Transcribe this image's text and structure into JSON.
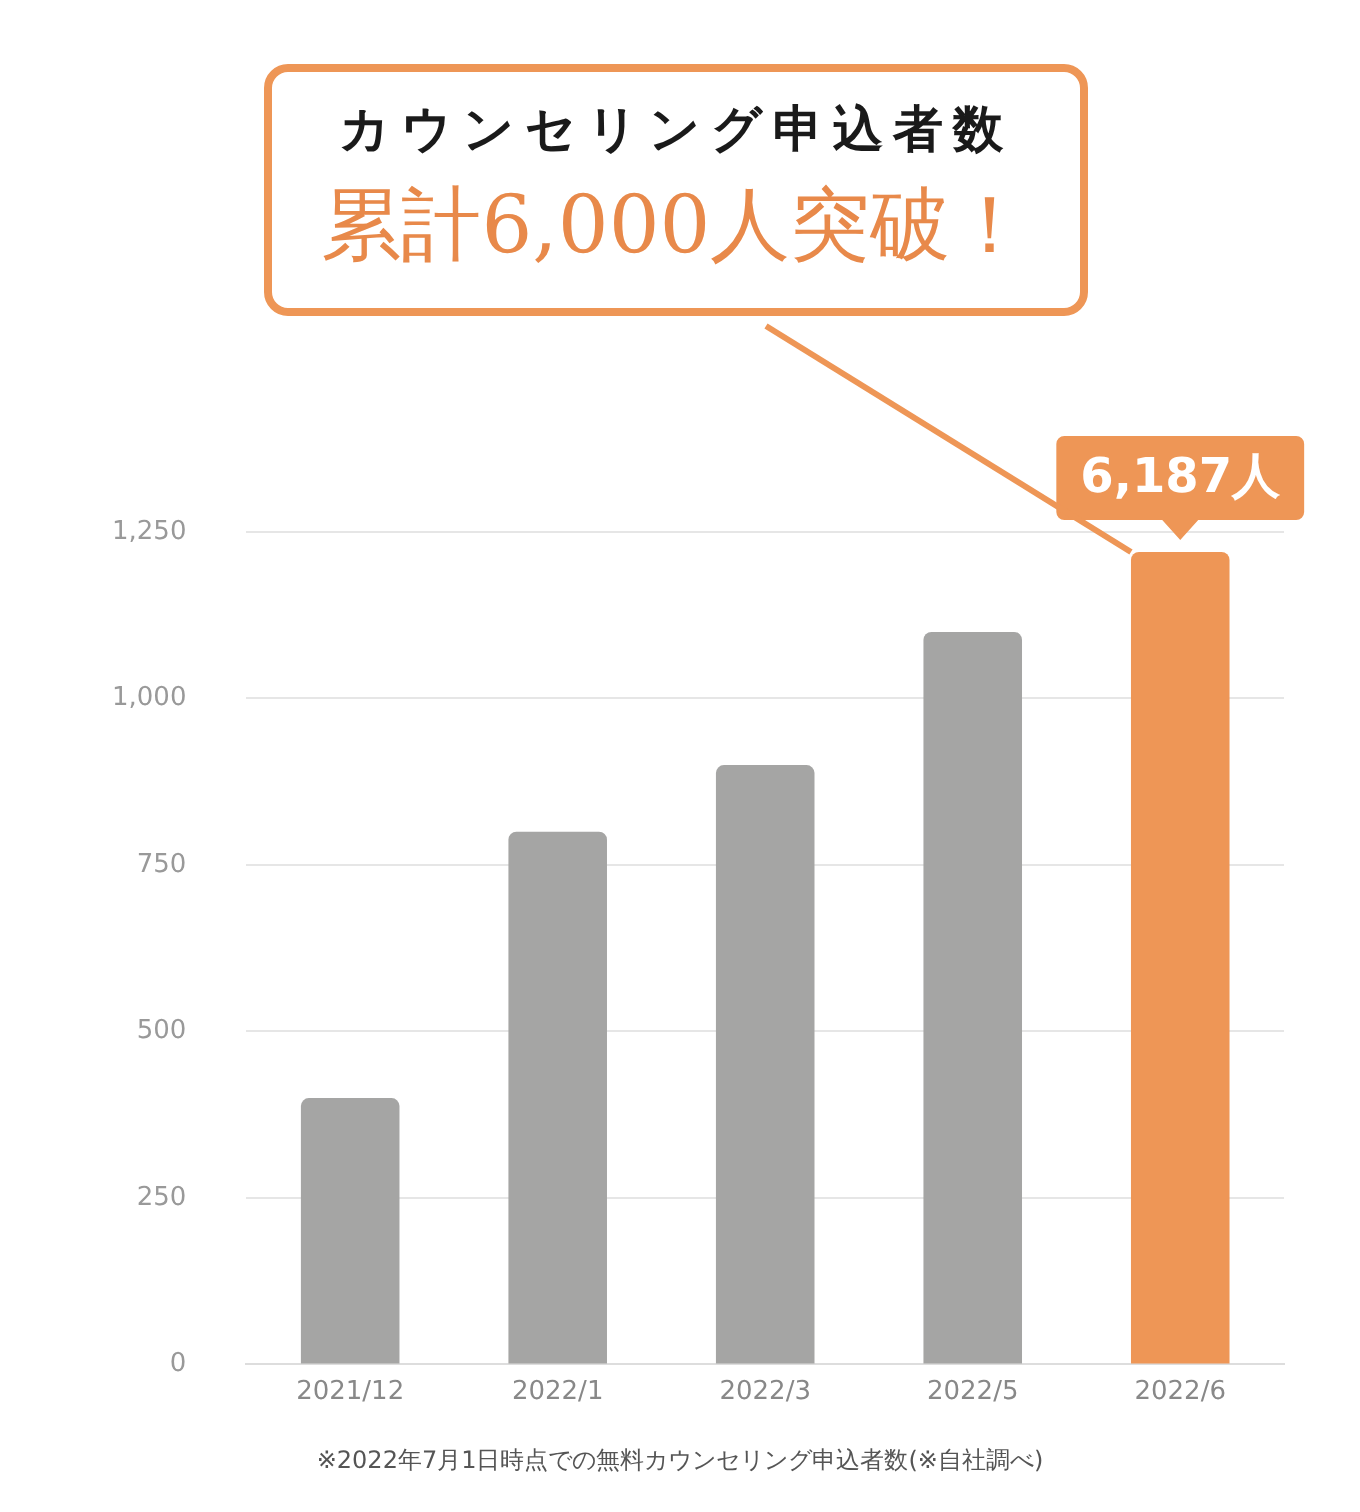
{
  "chart_data": {
    "type": "bar",
    "title": "カウンセリング申込者数",
    "subtitle": "累計6,000人突破！",
    "categories": [
      "2021/12",
      "2022/1",
      "2022/3",
      "2022/5",
      "2022/6"
    ],
    "values": [
      400,
      800,
      900,
      1100,
      1220
    ],
    "colors": [
      "#a5a5a4",
      "#a5a5a4",
      "#a5a5a4",
      "#a5a5a4",
      "#ee9656"
    ],
    "ylim": [
      0,
      1250
    ],
    "yticks": [
      0,
      250,
      500,
      750,
      {
        "value": 1000,
        "label": "1,000"
      },
      {
        "value": 1250,
        "label": "1,250"
      }
    ],
    "grid": "y",
    "annotations": [
      {
        "text": "6,187人",
        "x": "2022/6",
        "y": 1220
      },
      "※2022年7月1日時点での無料カウンセリング申込者数(※自社調べ)"
    ]
  }
}
